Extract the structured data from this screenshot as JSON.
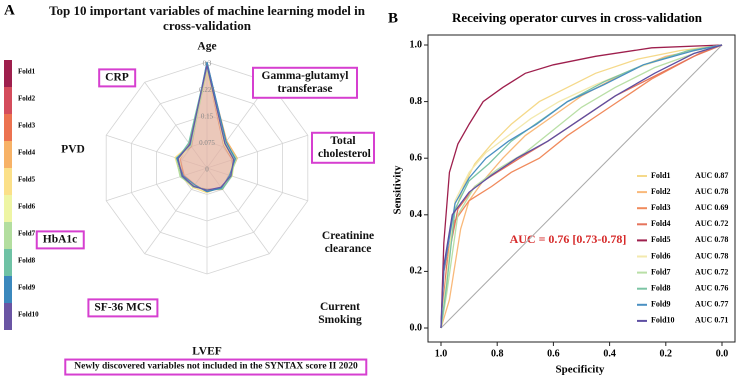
{
  "chart_data": [
    {
      "type": "radar",
      "panel": "A",
      "title": "Top 10 important variables of machine learning model in cross-validation",
      "categories": [
        "Age",
        "Gamma-glutamyl transferase",
        "Total cholesterol",
        "Creatinine clearance",
        "Current Smoking",
        "LVEF",
        "SF-36 MCS",
        "HbA1c",
        "PVD",
        "CRP"
      ],
      "boxed": [
        false,
        true,
        true,
        false,
        false,
        false,
        true,
        true,
        false,
        true
      ],
      "note": "Newly discovered variables not included in the SYNTAX score II 2020",
      "rlim": [
        0,
        0.3
      ],
      "rticks": [
        0,
        0.075,
        0.15,
        0.225,
        0.3
      ],
      "grid": true,
      "legend": "left",
      "series": [
        {
          "name": "Fold1",
          "color": "#9e1f4d",
          "values": [
            0.29,
            0.085,
            0.08,
            0.07,
            0.07,
            0.065,
            0.06,
            0.07,
            0.085,
            0.08
          ]
        },
        {
          "name": "Fold2",
          "color": "#d44c5c",
          "values": [
            0.3,
            0.09,
            0.085,
            0.065,
            0.072,
            0.06,
            0.065,
            0.075,
            0.09,
            0.075
          ]
        },
        {
          "name": "Fold3",
          "color": "#ec7250",
          "values": [
            0.28,
            0.08,
            0.075,
            0.072,
            0.068,
            0.068,
            0.058,
            0.068,
            0.08,
            0.085
          ]
        },
        {
          "name": "Fold4",
          "color": "#f7b267",
          "values": [
            0.29,
            0.095,
            0.09,
            0.068,
            0.075,
            0.062,
            0.062,
            0.072,
            0.088,
            0.078
          ]
        },
        {
          "name": "Fold5",
          "color": "#fbe089",
          "values": [
            0.27,
            0.088,
            0.082,
            0.075,
            0.066,
            0.07,
            0.068,
            0.078,
            0.095,
            0.082
          ]
        },
        {
          "name": "Fold6",
          "color": "#eef5a4",
          "values": [
            0.3,
            0.082,
            0.078,
            0.066,
            0.071,
            0.064,
            0.06,
            0.073,
            0.083,
            0.079
          ]
        },
        {
          "name": "Fold7",
          "color": "#b3de9f",
          "values": [
            0.28,
            0.09,
            0.088,
            0.07,
            0.069,
            0.066,
            0.063,
            0.08,
            0.092,
            0.077
          ]
        },
        {
          "name": "Fold8",
          "color": "#6fc2a5",
          "values": [
            0.29,
            0.087,
            0.08,
            0.073,
            0.074,
            0.061,
            0.066,
            0.076,
            0.087,
            0.088
          ]
        },
        {
          "name": "Fold9",
          "color": "#3b88bd",
          "values": [
            0.3,
            0.092,
            0.084,
            0.067,
            0.07,
            0.067,
            0.059,
            0.071,
            0.09,
            0.081
          ]
        },
        {
          "name": "Fold10",
          "color": "#6a55a4",
          "values": [
            0.29,
            0.086,
            0.079,
            0.071,
            0.067,
            0.063,
            0.064,
            0.074,
            0.086,
            0.083
          ]
        }
      ]
    },
    {
      "type": "line",
      "panel": "B",
      "title": "Receiving operator curves in cross-validation",
      "x_label": "Specificity",
      "y_label": "Sensitivity",
      "annotation": "AUC = 0.76 [0.73-0.78]",
      "xlim": [
        1,
        0
      ],
      "ylim": [
        0,
        1
      ],
      "reference_diagonal": true,
      "legend": "lower right",
      "xticks": [
        {
          "value": 1,
          "label": "1.0"
        },
        {
          "value": 0.8,
          "label": "0.8"
        },
        {
          "value": 0.6,
          "label": "0.6"
        },
        {
          "value": 0.4,
          "label": "0.4"
        },
        {
          "value": 0.2,
          "label": "0.2"
        },
        {
          "value": 0,
          "label": "0.0"
        }
      ],
      "yticks": [
        {
          "value": 0,
          "label": "0.0"
        },
        {
          "value": 0.2,
          "label": "0.2"
        },
        {
          "value": 0.4,
          "label": "0.4"
        },
        {
          "value": 0.6,
          "label": "0.6"
        },
        {
          "value": 0.8,
          "label": "0.8"
        },
        {
          "value": 1,
          "label": "1.0"
        }
      ],
      "series": [
        {
          "name": "Fold1",
          "auc_label": "AUC 0.87",
          "color": "#f5d98a",
          "x": [
            1,
            0.98,
            0.96,
            0.92,
            0.88,
            0.82,
            0.75,
            0.65,
            0.55,
            0.45,
            0.3,
            0.15,
            0
          ],
          "y": [
            0,
            0.15,
            0.38,
            0.5,
            0.58,
            0.65,
            0.72,
            0.8,
            0.85,
            0.9,
            0.95,
            0.98,
            1
          ]
        },
        {
          "name": "Fold2",
          "auc_label": "AUC 0.78",
          "color": "#f9b97a",
          "x": [
            1,
            0.97,
            0.93,
            0.9,
            0.85,
            0.78,
            0.7,
            0.6,
            0.5,
            0.35,
            0.2,
            0
          ],
          "y": [
            0,
            0.1,
            0.35,
            0.45,
            0.52,
            0.6,
            0.68,
            0.75,
            0.82,
            0.9,
            0.96,
            1
          ]
        },
        {
          "name": "Fold3",
          "auc_label": "AUC 0.69",
          "color": "#f08a5c",
          "x": [
            1,
            0.99,
            0.95,
            0.9,
            0.82,
            0.75,
            0.65,
            0.55,
            0.4,
            0.25,
            0.1,
            0
          ],
          "y": [
            0,
            0.2,
            0.38,
            0.45,
            0.5,
            0.55,
            0.6,
            0.68,
            0.78,
            0.88,
            0.96,
            1
          ]
        },
        {
          "name": "Fold4",
          "auc_label": "AUC 0.72",
          "color": "#e5735b",
          "x": [
            1,
            0.98,
            0.94,
            0.88,
            0.8,
            0.72,
            0.62,
            0.5,
            0.38,
            0.22,
            0.08,
            0
          ],
          "y": [
            0,
            0.22,
            0.42,
            0.5,
            0.55,
            0.6,
            0.66,
            0.74,
            0.82,
            0.9,
            0.97,
            1
          ]
        },
        {
          "name": "Fold5",
          "auc_label": "AUC 0.78",
          "color": "#9e1f4d",
          "x": [
            1,
            0.99,
            0.97,
            0.94,
            0.9,
            0.85,
            0.78,
            0.7,
            0.6,
            0.45,
            0.25,
            0
          ],
          "y": [
            0,
            0.3,
            0.55,
            0.65,
            0.72,
            0.8,
            0.85,
            0.9,
            0.93,
            0.96,
            0.99,
            1
          ]
        },
        {
          "name": "Fold6",
          "auc_label": "AUC 0.78",
          "color": "#f3e9ae",
          "x": [
            1,
            0.98,
            0.95,
            0.9,
            0.84,
            0.76,
            0.68,
            0.58,
            0.45,
            0.3,
            0.12,
            0
          ],
          "y": [
            0,
            0.18,
            0.45,
            0.55,
            0.62,
            0.68,
            0.74,
            0.8,
            0.86,
            0.92,
            0.98,
            1
          ]
        },
        {
          "name": "Fold7",
          "auc_label": "AUC 0.72",
          "color": "#b9dfa6",
          "x": [
            1,
            0.98,
            0.94,
            0.88,
            0.8,
            0.7,
            0.6,
            0.5,
            0.38,
            0.24,
            0.1,
            0
          ],
          "y": [
            0,
            0.12,
            0.4,
            0.5,
            0.56,
            0.62,
            0.7,
            0.78,
            0.85,
            0.92,
            0.97,
            1
          ]
        },
        {
          "name": "Fold8",
          "auc_label": "AUC 0.76",
          "color": "#7cc4a4",
          "x": [
            1,
            0.98,
            0.95,
            0.9,
            0.83,
            0.75,
            0.65,
            0.55,
            0.42,
            0.28,
            0.12,
            0
          ],
          "y": [
            0,
            0.15,
            0.42,
            0.52,
            0.58,
            0.66,
            0.73,
            0.8,
            0.87,
            0.93,
            0.98,
            1
          ]
        },
        {
          "name": "Fold9",
          "auc_label": "AUC 0.77",
          "color": "#4a90c2",
          "x": [
            1,
            0.99,
            0.95,
            0.9,
            0.84,
            0.76,
            0.66,
            0.55,
            0.42,
            0.28,
            0.1,
            0
          ],
          "y": [
            0,
            0.2,
            0.44,
            0.53,
            0.6,
            0.66,
            0.72,
            0.8,
            0.86,
            0.93,
            0.98,
            1
          ]
        },
        {
          "name": "Fold10",
          "auc_label": "AUC 0.71",
          "color": "#5e4fa2",
          "x": [
            1,
            0.99,
            0.96,
            0.9,
            0.82,
            0.73,
            0.62,
            0.5,
            0.38,
            0.24,
            0.1,
            0
          ],
          "y": [
            0,
            0.22,
            0.4,
            0.48,
            0.54,
            0.6,
            0.66,
            0.74,
            0.82,
            0.9,
            0.97,
            1
          ]
        }
      ]
    }
  ]
}
